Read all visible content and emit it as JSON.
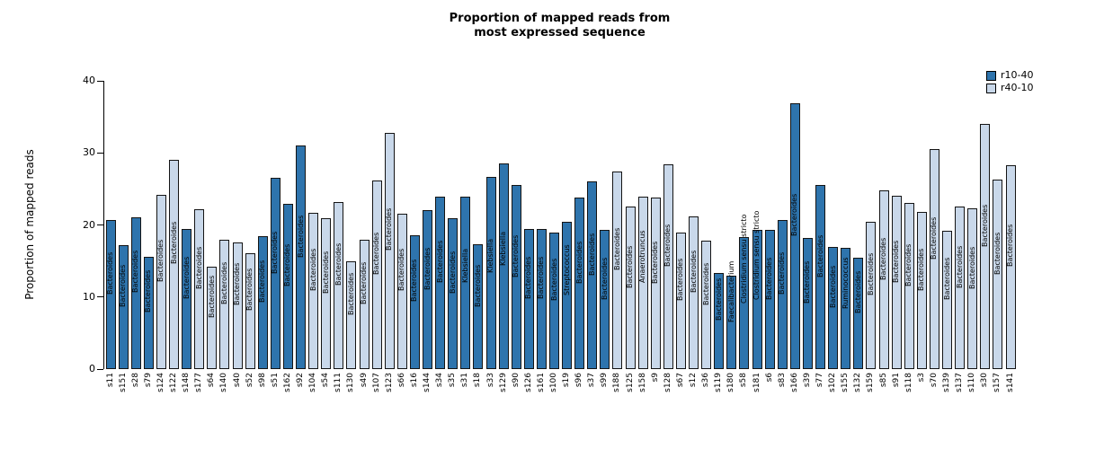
{
  "chart_data": {
    "type": "bar",
    "title": "Proportion of mapped reads from most expressed sequence",
    "title_lines": [
      "Proportion of mapped reads from",
      "most expressed sequence"
    ],
    "xlabel": "",
    "ylabel": "Proportion of mapped reads",
    "ylim": [
      0,
      40
    ],
    "yticks": [
      0,
      10,
      20,
      30,
      40
    ],
    "grid": false,
    "legend_position": "top-right",
    "legend": [
      {
        "label": "r10-40",
        "color": "#2e74ad"
      },
      {
        "label": "r40-10",
        "color": "#c9d8ea"
      }
    ],
    "bars": [
      {
        "sample": "s11",
        "taxon": "Bacteroides",
        "group": "r10-40",
        "value": 20.7
      },
      {
        "sample": "s151",
        "taxon": "Bacteroides",
        "group": "r10-40",
        "value": 17.2
      },
      {
        "sample": "s28",
        "taxon": "Bacteroides",
        "group": "r10-40",
        "value": 21.1
      },
      {
        "sample": "s79",
        "taxon": "Bacteroides",
        "group": "r10-40",
        "value": 15.6
      },
      {
        "sample": "s124",
        "taxon": "Bacteroides",
        "group": "r40-10",
        "value": 24.2
      },
      {
        "sample": "s122",
        "taxon": "Bacteroides",
        "group": "r40-10",
        "value": 29.1
      },
      {
        "sample": "s148",
        "taxon": "Bacteroides",
        "group": "r10-40",
        "value": 19.4
      },
      {
        "sample": "s177",
        "taxon": "Bacteroides",
        "group": "r40-10",
        "value": 22.2
      },
      {
        "sample": "s64",
        "taxon": "Bacteroides",
        "group": "r40-10",
        "value": 14.2
      },
      {
        "sample": "s140",
        "taxon": "Bacteroides",
        "group": "r40-10",
        "value": 18.0
      },
      {
        "sample": "s40",
        "taxon": "Bacteroides",
        "group": "r40-10",
        "value": 17.6
      },
      {
        "sample": "s52",
        "taxon": "Bacteroides",
        "group": "r40-10",
        "value": 16.1
      },
      {
        "sample": "s98",
        "taxon": "Bacteroides",
        "group": "r10-40",
        "value": 18.4
      },
      {
        "sample": "s51",
        "taxon": "Bacteroides",
        "group": "r10-40",
        "value": 26.5
      },
      {
        "sample": "s162",
        "taxon": "Bacteroides",
        "group": "r10-40",
        "value": 22.9
      },
      {
        "sample": "s92",
        "taxon": "Bacteroides",
        "group": "r10-40",
        "value": 31.0
      },
      {
        "sample": "s104",
        "taxon": "Bacteroides",
        "group": "r40-10",
        "value": 21.7
      },
      {
        "sample": "s54",
        "taxon": "Bacteroides",
        "group": "r40-10",
        "value": 20.9
      },
      {
        "sample": "s111",
        "taxon": "Bacteroides",
        "group": "r40-10",
        "value": 23.2
      },
      {
        "sample": "s130",
        "taxon": "Bacteroides",
        "group": "r40-10",
        "value": 14.9
      },
      {
        "sample": "s49",
        "taxon": "Bacteroides",
        "group": "r40-10",
        "value": 18.0
      },
      {
        "sample": "s107",
        "taxon": "Bacteroides",
        "group": "r40-10",
        "value": 26.2
      },
      {
        "sample": "s123",
        "taxon": "Bacteroides",
        "group": "r40-10",
        "value": 32.8
      },
      {
        "sample": "s66",
        "taxon": "Bacteroides",
        "group": "r40-10",
        "value": 21.6
      },
      {
        "sample": "s16",
        "taxon": "Bacteroides",
        "group": "r10-40",
        "value": 18.6
      },
      {
        "sample": "s144",
        "taxon": "Bacteroides",
        "group": "r10-40",
        "value": 22.0
      },
      {
        "sample": "s34",
        "taxon": "Bacteroides",
        "group": "r10-40",
        "value": 23.9
      },
      {
        "sample": "s35",
        "taxon": "Bacteroides",
        "group": "r10-40",
        "value": 20.9
      },
      {
        "sample": "s31",
        "taxon": "Klebsiella",
        "group": "r10-40",
        "value": 23.9
      },
      {
        "sample": "s18",
        "taxon": "Bacteroides",
        "group": "r10-40",
        "value": 17.3
      },
      {
        "sample": "s33",
        "taxon": "Klebsiella",
        "group": "r10-40",
        "value": 26.7
      },
      {
        "sample": "s129",
        "taxon": "Klebsiella",
        "group": "r10-40",
        "value": 28.6
      },
      {
        "sample": "s90",
        "taxon": "Bacteroides",
        "group": "r10-40",
        "value": 25.5
      },
      {
        "sample": "s126",
        "taxon": "Bacteroides",
        "group": "r10-40",
        "value": 19.5
      },
      {
        "sample": "s161",
        "taxon": "Bacteroides",
        "group": "r10-40",
        "value": 19.5
      },
      {
        "sample": "s100",
        "taxon": "Bacteroides",
        "group": "r10-40",
        "value": 19.0
      },
      {
        "sample": "s19",
        "taxon": "Streptococcus",
        "group": "r10-40",
        "value": 20.4
      },
      {
        "sample": "s96",
        "taxon": "Bacteroides",
        "group": "r10-40",
        "value": 23.8
      },
      {
        "sample": "s37",
        "taxon": "Bacteroides",
        "group": "r10-40",
        "value": 26.0
      },
      {
        "sample": "s99",
        "taxon": "Bacteroides",
        "group": "r10-40",
        "value": 19.3
      },
      {
        "sample": "s188",
        "taxon": "Bacteroides",
        "group": "r40-10",
        "value": 27.4
      },
      {
        "sample": "s125",
        "taxon": "Bacteroides",
        "group": "r40-10",
        "value": 22.5
      },
      {
        "sample": "s158",
        "taxon": "Anaerotruncus",
        "group": "r40-10",
        "value": 23.9
      },
      {
        "sample": "s9",
        "taxon": "Bacteroides",
        "group": "r40-10",
        "value": 23.8
      },
      {
        "sample": "s128",
        "taxon": "Bacteroides",
        "group": "r40-10",
        "value": 28.4
      },
      {
        "sample": "s67",
        "taxon": "Bacteroides",
        "group": "r40-10",
        "value": 19.0
      },
      {
        "sample": "s12",
        "taxon": "Bacteroides",
        "group": "r40-10",
        "value": 21.2
      },
      {
        "sample": "s36",
        "taxon": "Bacteroides",
        "group": "r40-10",
        "value": 17.8
      },
      {
        "sample": "s119",
        "taxon": "Bacteroides",
        "group": "r10-40",
        "value": 13.4
      },
      {
        "sample": "s180",
        "taxon": "Faecalibacterium",
        "group": "r10-40",
        "value": 13.0
      },
      {
        "sample": "s58",
        "taxon": "Clostridium sensu stricto",
        "group": "r10-40",
        "value": 18.3
      },
      {
        "sample": "s181",
        "taxon": "Clostridium sensu stricto",
        "group": "r10-40",
        "value": 19.3
      },
      {
        "sample": "s6",
        "taxon": "Bacteroides",
        "group": "r10-40",
        "value": 19.3
      },
      {
        "sample": "s83",
        "taxon": "Bacteroides",
        "group": "r10-40",
        "value": 20.7
      },
      {
        "sample": "s166",
        "taxon": "Bacteroides",
        "group": "r10-40",
        "value": 36.9
      },
      {
        "sample": "s39",
        "taxon": "Bacteroides",
        "group": "r10-40",
        "value": 18.2
      },
      {
        "sample": "s77",
        "taxon": "Bacteroides",
        "group": "r10-40",
        "value": 25.5
      },
      {
        "sample": "s102",
        "taxon": "Bacteroides",
        "group": "r10-40",
        "value": 17.0
      },
      {
        "sample": "s155",
        "taxon": "Ruminococcus",
        "group": "r10-40",
        "value": 16.8
      },
      {
        "sample": "s132",
        "taxon": "Bacteroides",
        "group": "r10-40",
        "value": 15.5
      },
      {
        "sample": "s159",
        "taxon": "Bacteroides",
        "group": "r40-10",
        "value": 20.5
      },
      {
        "sample": "s85",
        "taxon": "Bacteroides",
        "group": "r40-10",
        "value": 24.8
      },
      {
        "sample": "s91",
        "taxon": "Bacteroides",
        "group": "r40-10",
        "value": 24.0
      },
      {
        "sample": "s118",
        "taxon": "Bacteroides",
        "group": "r40-10",
        "value": 23.0
      },
      {
        "sample": "s3",
        "taxon": "Bacteroides",
        "group": "r40-10",
        "value": 21.8
      },
      {
        "sample": "s70",
        "taxon": "Bacteroides",
        "group": "r40-10",
        "value": 30.5
      },
      {
        "sample": "s139",
        "taxon": "Bacteroides",
        "group": "r40-10",
        "value": 19.2
      },
      {
        "sample": "s137",
        "taxon": "Bacteroides",
        "group": "r40-10",
        "value": 22.5
      },
      {
        "sample": "s110",
        "taxon": "Bacteroides",
        "group": "r40-10",
        "value": 22.3
      },
      {
        "sample": "s30",
        "taxon": "Bacteroides",
        "group": "r40-10",
        "value": 34.0
      },
      {
        "sample": "s157",
        "taxon": "Bacteroides",
        "group": "r40-10",
        "value": 26.3
      },
      {
        "sample": "s141",
        "taxon": "Bacteroides",
        "group": "r40-10",
        "value": 28.3
      }
    ]
  }
}
